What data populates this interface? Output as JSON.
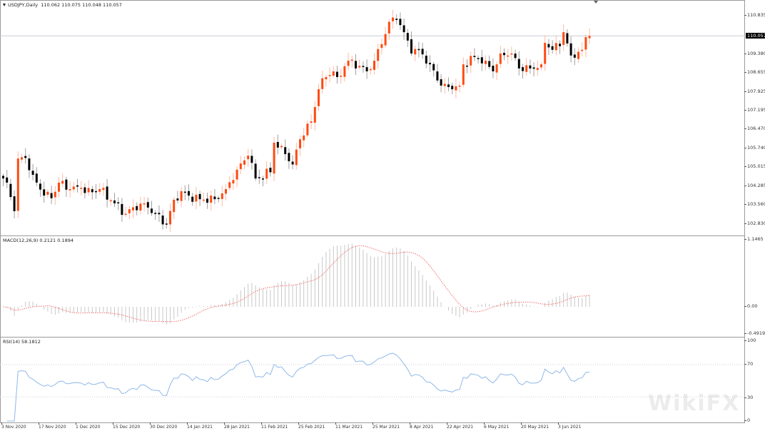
{
  "header": {
    "symbol_label": "USDJPY,Daily",
    "ohlc": "110.062 110.075 110.048 110.057"
  },
  "macd_header": "MACD(12,26,9) 0.2121 0.1894",
  "rsi_header": "RSI(14) 58.1812",
  "current_price": "110.057",
  "price_axis": [
    "110.835",
    "109.380",
    "108.655",
    "107.925",
    "107.195",
    "106.470",
    "105.740",
    "105.015",
    "104.285",
    "103.560",
    "102.830"
  ],
  "macd_axis": [
    "1.1465",
    "0.00",
    "-0.4919"
  ],
  "rsi_axis": [
    "100",
    "70",
    "30",
    "0"
  ],
  "time_axis": [
    "3 Nov 2020",
    "17 Nov 2020",
    "1 Dec 2020",
    "15 Dec 2020",
    "30 Dec 2020",
    "14 Jan 2021",
    "28 Jan 2021",
    "11 Feb 2021",
    "25 Feb 2021",
    "11 Mar 2021",
    "25 Mar 2021",
    "8 Apr 2021",
    "22 Apr 2021",
    "6 May 2021",
    "20 May 2021",
    "3 Jun 2021"
  ],
  "watermark": "WikiFX",
  "colors": {
    "bull": "#ff4a12",
    "bear": "#000000",
    "bull_wick": "#ffb9a3",
    "bear_wick": "#a0a0a0",
    "macd_hist": "#c8c8c8",
    "signal": "#f07070",
    "rsi": "#8fb8ea"
  },
  "chart_data": {
    "type": "candlestick",
    "title": "USDJPY,Daily",
    "candle_count": 159,
    "close_keypoints": [
      [
        0,
        104.56
      ],
      [
        1,
        104.4
      ],
      [
        3,
        103.3
      ],
      [
        4,
        105.33
      ],
      [
        6,
        105.35
      ],
      [
        8,
        104.7
      ],
      [
        11,
        103.9
      ],
      [
        13,
        103.8
      ],
      [
        15,
        104.4
      ],
      [
        18,
        104.15
      ],
      [
        21,
        104.2
      ],
      [
        22,
        104.0
      ],
      [
        26,
        104.15
      ],
      [
        30,
        103.6
      ],
      [
        33,
        103.2
      ],
      [
        35,
        103.45
      ],
      [
        38,
        103.6
      ],
      [
        41,
        103.2
      ],
      [
        44,
        102.78
      ],
      [
        46,
        103.74
      ],
      [
        48,
        104.07
      ],
      [
        50,
        103.9
      ],
      [
        53,
        103.76
      ],
      [
        57,
        103.76
      ],
      [
        60,
        104.15
      ],
      [
        63,
        104.9
      ],
      [
        66,
        105.44
      ],
      [
        68,
        104.56
      ],
      [
        72,
        104.8
      ],
      [
        73,
        105.94
      ],
      [
        76,
        105.5
      ],
      [
        78,
        105.1
      ],
      [
        80,
        106.07
      ],
      [
        83,
        106.76
      ],
      [
        85,
        108.0
      ],
      [
        87,
        108.47
      ],
      [
        89,
        108.69
      ],
      [
        90,
        108.47
      ],
      [
        93,
        109.1
      ],
      [
        96,
        108.9
      ],
      [
        98,
        108.69
      ],
      [
        100,
        109.1
      ],
      [
        102,
        109.74
      ],
      [
        104,
        110.6
      ],
      [
        106,
        110.67
      ],
      [
        108,
        110.2
      ],
      [
        110,
        109.38
      ],
      [
        112,
        109.52
      ],
      [
        115,
        108.96
      ],
      [
        118,
        108.14
      ],
      [
        121,
        108.0
      ],
      [
        123,
        108.14
      ],
      [
        124,
        108.96
      ],
      [
        127,
        109.24
      ],
      [
        130,
        109.1
      ],
      [
        132,
        108.69
      ],
      [
        134,
        109.38
      ],
      [
        137,
        109.38
      ],
      [
        139,
        108.8
      ],
      [
        142,
        108.8
      ],
      [
        145,
        108.96
      ],
      [
        146,
        109.79
      ],
      [
        148,
        109.52
      ],
      [
        150,
        109.66
      ],
      [
        151,
        110.2
      ],
      [
        153,
        109.3
      ],
      [
        156,
        109.52
      ],
      [
        157,
        110.01
      ],
      [
        158,
        110.057
      ]
    ],
    "price_range": [
      102.36,
      111.385
    ],
    "macd": {
      "fast": 12,
      "slow": 26,
      "signal": 9,
      "range": [
        -0.4919,
        1.1465
      ],
      "last": 0.2121,
      "last_signal": 0.1894
    },
    "rsi": {
      "period": 14,
      "range": [
        0,
        100
      ],
      "levels": [
        70,
        30
      ],
      "last": 58.1812
    }
  }
}
